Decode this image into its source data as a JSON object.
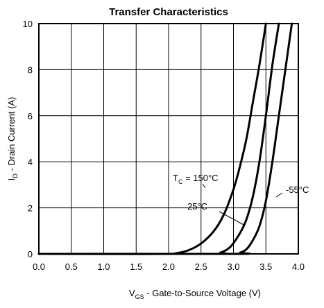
{
  "chart_data": {
    "type": "line",
    "title": "Transfer Characteristics",
    "xlabel": {
      "main": "V",
      "sub": "GS",
      "rest": " - Gate-to-Source Voltage (V)"
    },
    "ylabel": {
      "main": "I",
      "sub": "D",
      "rest": " - Drain Current (A)"
    },
    "xlim": [
      0,
      4
    ],
    "ylim": [
      0,
      10
    ],
    "xticks": [
      0,
      0.5,
      1,
      1.5,
      2,
      2.5,
      3,
      3.5,
      4
    ],
    "xtick_labels": [
      "0.0",
      "0.5",
      "1.0",
      "1.5",
      "2.0",
      "2.5",
      "3.0",
      "3.5",
      "4.0"
    ],
    "yticks": [
      0,
      2,
      4,
      6,
      8,
      10
    ],
    "ytick_labels": [
      "0",
      "2",
      "4",
      "6",
      "8",
      "10"
    ],
    "grid": true,
    "series": [
      {
        "id": "tc150",
        "x": [
          0,
          1.95,
          2.1,
          2.3,
          2.5,
          2.7,
          2.85,
          3.0,
          3.1,
          3.2,
          3.3,
          3.4,
          3.5
        ],
        "y": [
          0,
          0,
          0.02,
          0.15,
          0.45,
          1.0,
          1.7,
          2.8,
          3.8,
          5.0,
          6.6,
          8.2,
          10.0
        ]
      },
      {
        "id": "tc25",
        "x": [
          0,
          2.65,
          2.8,
          2.95,
          3.1,
          3.2,
          3.3,
          3.4,
          3.5,
          3.6,
          3.7
        ],
        "y": [
          0,
          0,
          0.06,
          0.3,
          0.9,
          1.5,
          2.5,
          4.0,
          6.0,
          8.2,
          10.0
        ]
      },
      {
        "id": "tcm55",
        "x": [
          0,
          3.0,
          3.1,
          3.2,
          3.3,
          3.4,
          3.5,
          3.6,
          3.7,
          3.8,
          3.9
        ],
        "y": [
          0,
          0,
          0.05,
          0.2,
          0.6,
          1.2,
          2.3,
          4.0,
          6.0,
          8.0,
          10.0
        ]
      }
    ],
    "annotations": {
      "tc150": {
        "main": "T",
        "sub": "C",
        "rest": " = 150°C"
      },
      "tc25": "25°C",
      "tcm55": "-55°C"
    },
    "colors": {
      "line": "#000000",
      "grid": "#000000",
      "background": "#ffffff"
    }
  }
}
